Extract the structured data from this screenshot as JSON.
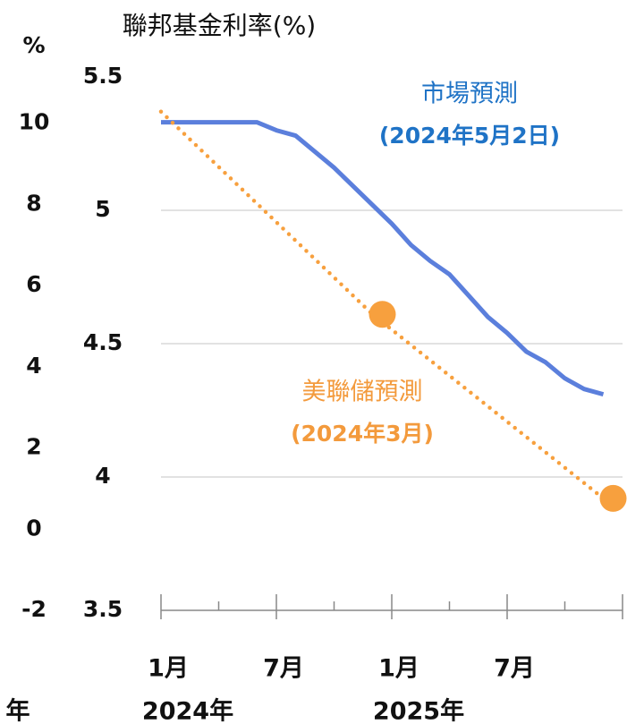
{
  "chart_data": {
    "type": "line",
    "title": "聯邦基金利率(%)",
    "y2_label": "%",
    "x_fragment": "年",
    "xlim": [
      "2024-01",
      "2026-01"
    ],
    "xticks": [
      "2024-01",
      "2024-04",
      "2024-07",
      "2024-10",
      "2025-01",
      "2025-04",
      "2025-07",
      "2025-10",
      "2026-01"
    ],
    "xlabels": [
      {
        "value": "2024-01",
        "label": "1月"
      },
      {
        "value": "2024-07",
        "label": "7月"
      },
      {
        "value": "2025-01",
        "label": "1月"
      },
      {
        "value": "2025-07",
        "label": "7月"
      }
    ],
    "year_labels": [
      {
        "value": "2024-01",
        "label": "2024年"
      },
      {
        "value": "2025-01",
        "label": "2025年"
      }
    ],
    "ylim": [
      3.5,
      5.5
    ],
    "yticks": [
      3.5,
      4.0,
      4.5,
      5.0,
      5.5
    ],
    "y2lim": [
      -2,
      12
    ],
    "y2ticks": [
      -2,
      0,
      2,
      4,
      6,
      8,
      10
    ],
    "grid": true,
    "series": [
      {
        "name": "市場預測",
        "subname": "(2024年5月2日)",
        "color": "#5b7fdc",
        "label_color": "#1f73c6",
        "style": "solid",
        "x": [
          "2024-01",
          "2024-02",
          "2024-03",
          "2024-04",
          "2024-05",
          "2024-06",
          "2024-07",
          "2024-08",
          "2024-09",
          "2024-10",
          "2024-11",
          "2024-12",
          "2025-01",
          "2025-02",
          "2025-03",
          "2025-04",
          "2025-05",
          "2025-06",
          "2025-07",
          "2025-08",
          "2025-09",
          "2025-10",
          "2025-11",
          "2025-12"
        ],
        "values": [
          5.33,
          5.33,
          5.33,
          5.33,
          5.33,
          5.33,
          5.3,
          5.28,
          5.22,
          5.16,
          5.09,
          5.02,
          4.95,
          4.87,
          4.81,
          4.76,
          4.68,
          4.6,
          4.54,
          4.47,
          4.43,
          4.37,
          4.33,
          4.31
        ]
      },
      {
        "name": "美聯儲預測",
        "subname": "(2024年3月)",
        "color": "#f7a03e",
        "label_color": "#f39a3c",
        "style": "dotted",
        "x": [
          "2024-01",
          "2024-12",
          "2025-12"
        ],
        "values": [
          5.37,
          4.61,
          3.92
        ],
        "markers": [
          false,
          true,
          true
        ]
      }
    ]
  }
}
